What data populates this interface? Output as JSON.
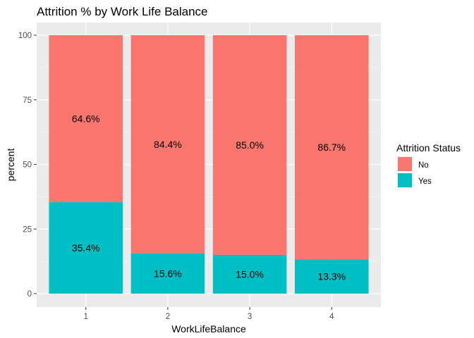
{
  "chart_data": {
    "type": "bar",
    "stacked": true,
    "title": "Attrition % by Work Life Balance",
    "xlabel": "WorkLifeBalance",
    "ylabel": "percent",
    "categories": [
      "1",
      "2",
      "3",
      "4"
    ],
    "ylim": [
      0,
      100
    ],
    "yticks": [
      "0",
      "25",
      "50",
      "75",
      "100"
    ],
    "grid": true,
    "legend": {
      "title": "Attrition Status",
      "position": "right"
    },
    "series": [
      {
        "name": "No",
        "color": "#F8766D",
        "values": [
          64.6,
          84.4,
          85.0,
          86.7
        ],
        "labels": [
          "64.6%",
          "84.4%",
          "85.0%",
          "86.7%"
        ]
      },
      {
        "name": "Yes",
        "color": "#00BFC4",
        "values": [
          35.4,
          15.6,
          15.0,
          13.3
        ],
        "labels": [
          "35.4%",
          "15.6%",
          "15.0%",
          "13.3%"
        ]
      }
    ]
  }
}
